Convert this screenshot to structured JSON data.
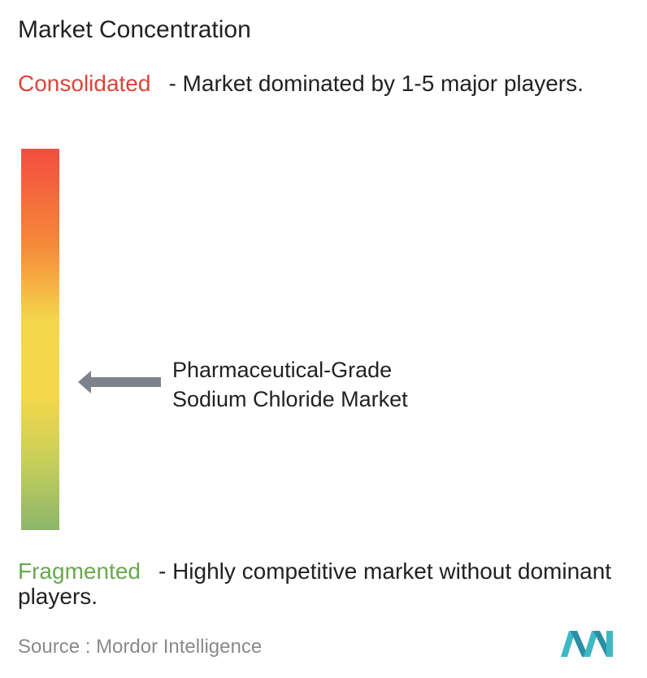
{
  "title": "Market Concentration",
  "top": {
    "label": "Consolidated",
    "text": "- Market dominated by 1-5 major players."
  },
  "marker": {
    "lines": [
      "Pharmaceutical-Grade",
      "Sodium Chloride Market"
    ]
  },
  "bottom": {
    "label": "Fragmented",
    "text": "- Highly competitive market without dominant players."
  },
  "source": {
    "label": "Source :",
    "name": "Mordor Intelligence"
  }
}
